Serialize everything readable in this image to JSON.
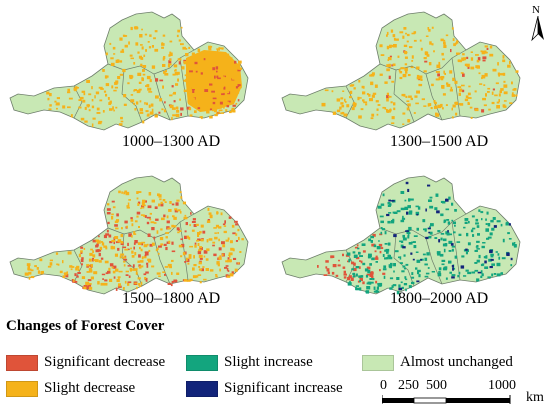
{
  "panels": [
    {
      "label": "1000–1300 AD"
    },
    {
      "label": "1300–1500 AD"
    },
    {
      "label": "1500–1800 AD"
    },
    {
      "label": "1800–2000 AD"
    }
  ],
  "north": {
    "label": "N"
  },
  "legend": {
    "title": "Changes of Forest Cover",
    "items": [
      {
        "label": "Significant decrease",
        "color": "#e0543a"
      },
      {
        "label": "Slight decrease",
        "color": "#f5b21a"
      },
      {
        "label": "Slight increase",
        "color": "#13a57e"
      },
      {
        "label": "Significant increase",
        "color": "#12247a"
      },
      {
        "label": "Almost unchanged",
        "color": "#c8e8b4"
      }
    ]
  },
  "scale": {
    "t0": "0",
    "t1": "250",
    "t2": "500",
    "t3": "1000",
    "unit": "km"
  },
  "colors": {
    "base": "#c8e8b4",
    "boundary": "#6d7d6a"
  }
}
